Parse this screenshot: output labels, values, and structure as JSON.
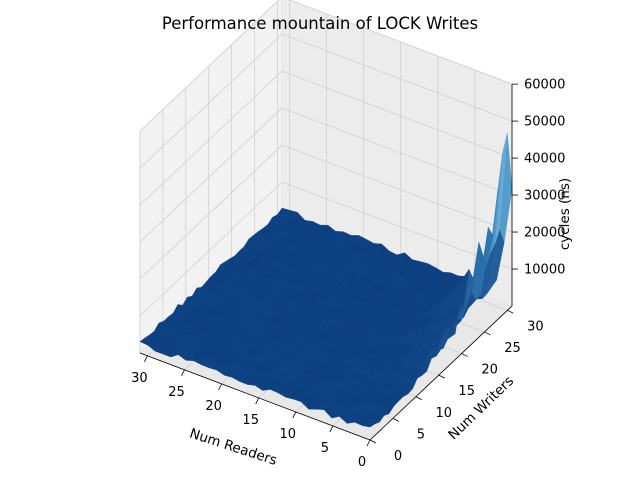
{
  "chart_data": {
    "type": "surface3d",
    "title": "Performance mountain of LOCK Writes",
    "xlabel": "Num Readers",
    "ylabel": "Num Writers",
    "zlabel": "cycles (ns)",
    "x_ticks": [
      "30",
      "25",
      "20",
      "15",
      "10",
      "5",
      "0"
    ],
    "y_ticks": [
      "0",
      "5",
      "10",
      "15",
      "20",
      "25",
      "30"
    ],
    "z_ticks": [
      "10000",
      "20000",
      "30000",
      "40000",
      "50000",
      "60000"
    ],
    "xlim": [
      0,
      31
    ],
    "ylim": [
      0,
      31
    ],
    "zlim": [
      0,
      60000
    ],
    "colormap": "Blues",
    "baseline_cycles": 2000,
    "peak_cycles": 52000,
    "peak_location": {
      "readers": 0,
      "writers": 30
    }
  },
  "colors": {
    "pane": "#f2f2f2",
    "grid": "#d0d0d0",
    "surface_low": "#0c3e80",
    "surface_high": "#eef5fd"
  }
}
